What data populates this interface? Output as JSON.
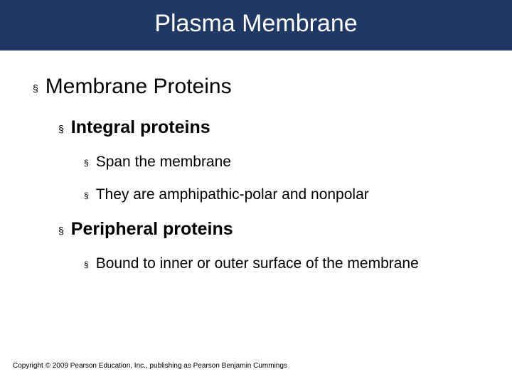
{
  "title": "Plasma Membrane",
  "colors": {
    "title_bar_bg": "#1f3864",
    "title_text": "#ffffff",
    "body_text": "#000000",
    "background": "#ffffff"
  },
  "typography": {
    "title_fontsize": 34,
    "lvl1_fontsize": 30,
    "lvl2_fontsize": 25,
    "lvl3_fontsize": 21,
    "footer_fontsize": 10,
    "lvl2_fontweight": "bold"
  },
  "bullets": {
    "lvl1": {
      "item1": "Membrane Proteins"
    },
    "lvl2": {
      "item1": "Integral proteins",
      "item2": "Peripheral proteins"
    },
    "lvl3": {
      "item1": "Span the membrane",
      "item2": "They are amphipathic-polar and nonpolar",
      "item3": "Bound to inner or outer surface of the membrane"
    }
  },
  "bullet_marker": "§",
  "footer": "Copyright © 2009 Pearson Education, Inc., publishing as Pearson Benjamin Cummings"
}
